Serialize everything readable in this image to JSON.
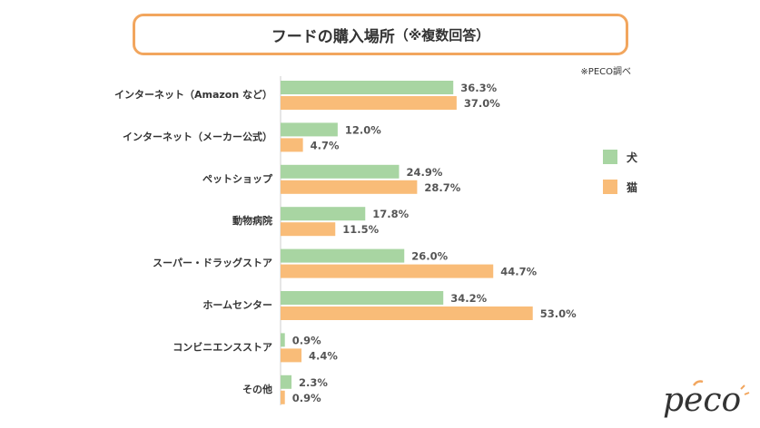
{
  "chart_data": {
    "type": "bar",
    "orientation": "horizontal",
    "title": "フードの購入場所",
    "title_note": "（※複数回答）",
    "source": "※PECO調べ",
    "categories": [
      "インターネット（Amazon など）",
      "インターネット（メーカー公式）",
      "ペットショップ",
      "動物病院",
      "スーパー・ドラッグストア",
      "ホームセンター",
      "コンビニエンスストア",
      "その他"
    ],
    "series": [
      {
        "name": "犬",
        "color": "#a8d5a2",
        "values": [
          36.3,
          12.0,
          24.9,
          17.8,
          26.0,
          34.2,
          0.9,
          2.3
        ]
      },
      {
        "name": "猫",
        "color": "#f9bc78",
        "values": [
          37.0,
          4.7,
          28.7,
          11.5,
          44.7,
          53.0,
          4.4,
          0.9
        ]
      }
    ],
    "value_suffix": "%",
    "xlim": [
      0,
      60
    ],
    "legend_position": "right",
    "grid": false
  },
  "logo": {
    "text": "peco"
  }
}
